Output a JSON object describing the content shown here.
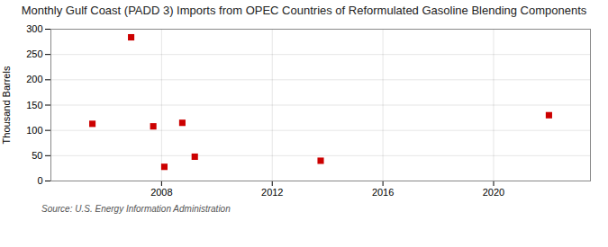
{
  "chart_data": {
    "type": "scatter",
    "title": "Monthly Gulf Coast (PADD 3) Imports from OPEC Countries of Reformulated Gasoline Blending Components",
    "ylabel": "Thousand Barrels",
    "source": "Source: U.S. Energy Information Administration",
    "x": [
      2005.5,
      2006.9,
      2007.7,
      2008.1,
      2008.75,
      2009.2,
      2013.75,
      2022.0
    ],
    "values": [
      113,
      284,
      108,
      28,
      115,
      48,
      40,
      130
    ],
    "color": "#cc0000",
    "marker": "square",
    "xlim": [
      2004.0,
      2023.5
    ],
    "ylim": [
      0,
      300
    ],
    "xticks": [
      2008,
      2012,
      2016,
      2020
    ],
    "yticks": [
      0,
      50,
      100,
      150,
      200,
      250,
      300
    ],
    "grid": true
  }
}
